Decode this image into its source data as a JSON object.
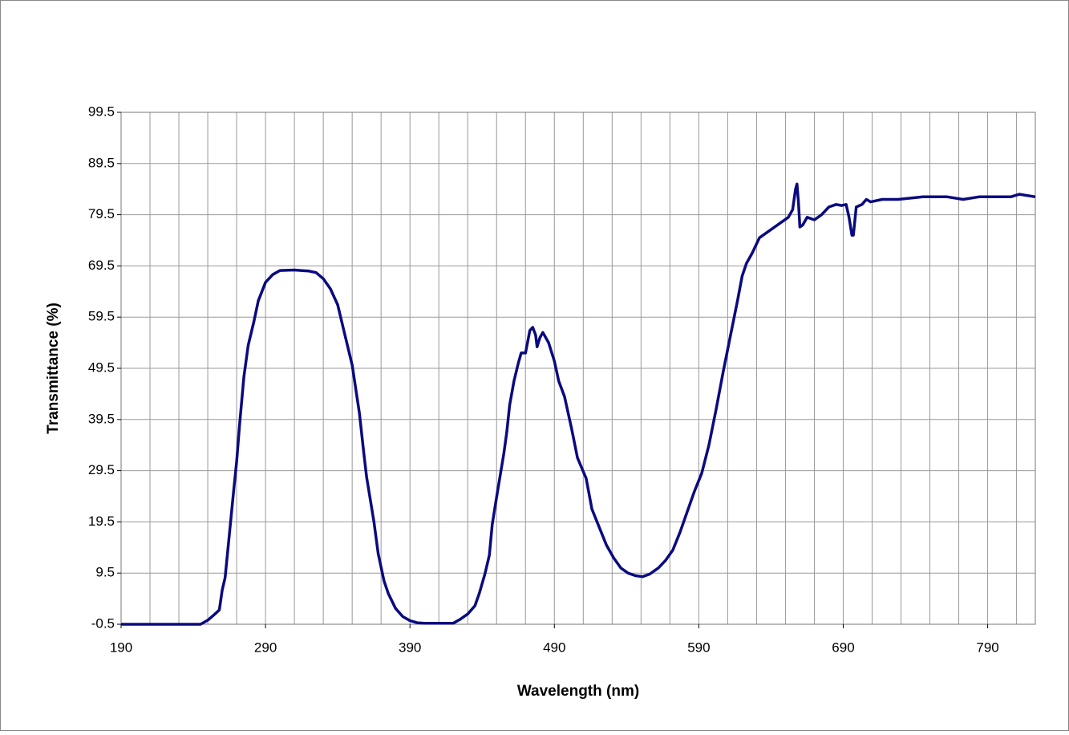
{
  "chart_data": {
    "type": "line",
    "x_label": "Wavelength (nm)",
    "y_label": "Transmittance (%)",
    "xlim": [
      190,
      823
    ],
    "ylim": [
      -0.5,
      99.5
    ],
    "xticks": [
      190,
      290,
      390,
      490,
      590,
      690,
      790
    ],
    "xgrid": [
      190,
      210,
      230,
      250,
      270,
      290,
      310,
      330,
      350,
      370,
      390,
      410,
      430,
      450,
      470,
      490,
      510,
      530,
      550,
      570,
      590,
      610,
      630,
      650,
      670,
      690,
      710,
      730,
      750,
      770,
      790,
      810
    ],
    "yticks": [
      -0.5,
      9.5,
      19.5,
      29.5,
      39.5,
      49.5,
      59.5,
      69.5,
      79.5,
      89.5,
      99.5
    ],
    "grid": true,
    "series": [
      {
        "color": "#0a0a80",
        "x": [
          190,
          245,
          250,
          255,
          258,
          260,
          262,
          265,
          268,
          270,
          272,
          275,
          278,
          282,
          285,
          290,
          295,
          300,
          310,
          320,
          325,
          330,
          335,
          340,
          345,
          350,
          355,
          358,
          360,
          365,
          368,
          372,
          375,
          380,
          385,
          390,
          395,
          400,
          420,
          425,
          430,
          435,
          438,
          442,
          445,
          447,
          450,
          455,
          457,
          459,
          462,
          465,
          467,
          470,
          473,
          475,
          477,
          478,
          480,
          482,
          486,
          490,
          493,
          497,
          502,
          506,
          512,
          516,
          521,
          526,
          531,
          536,
          541,
          546,
          551,
          556,
          562,
          567,
          572,
          577,
          582,
          587,
          592,
          597,
          602,
          607,
          612,
          617,
          620,
          623,
          627,
          632,
          637,
          642,
          647,
          652,
          655,
          657,
          658,
          659,
          660,
          662,
          665,
          670,
          675,
          680,
          685,
          689,
          692,
          694,
          696,
          697,
          699,
          703,
          706,
          709,
          717,
          728,
          745,
          762,
          773,
          784,
          795,
          806,
          812,
          823
        ],
        "values": [
          -0.5,
          -0.5,
          0.3,
          1.5,
          2.3,
          6.2,
          8.6,
          17.2,
          25.8,
          31.3,
          38.4,
          47.8,
          54,
          58.7,
          62.7,
          66.3,
          67.8,
          68.6,
          68.7,
          68.5,
          68.2,
          67,
          65,
          61.9,
          56,
          50.1,
          40.7,
          33,
          28.2,
          19.6,
          13.3,
          8,
          5.5,
          2.6,
          1,
          0.2,
          -0.2,
          -0.3,
          -0.3,
          0.5,
          1.5,
          3.1,
          5.5,
          9.4,
          13,
          19,
          24.3,
          32.9,
          37,
          42.3,
          47,
          50.5,
          52.5,
          52.5,
          56.9,
          57.5,
          56,
          53.7,
          55.5,
          56.5,
          54.5,
          50.9,
          47,
          44,
          37.6,
          32,
          28,
          22,
          18.5,
          15,
          12.5,
          10.5,
          9.5,
          9,
          8.8,
          9.3,
          10.5,
          12,
          14,
          17.5,
          21.5,
          25.5,
          29,
          34.5,
          41.5,
          49,
          56,
          63,
          67.5,
          70,
          72,
          75,
          76,
          77,
          78,
          79,
          80.5,
          84.5,
          85.5,
          82,
          77.1,
          77.5,
          79,
          78.5,
          79.5,
          81,
          81.5,
          81.3,
          81.5,
          79,
          75.5,
          75.5,
          81,
          81.5,
          82.5,
          82,
          82.5,
          82.5,
          83,
          83,
          82.5,
          83,
          83,
          83,
          83.5,
          83
        ]
      }
    ]
  }
}
